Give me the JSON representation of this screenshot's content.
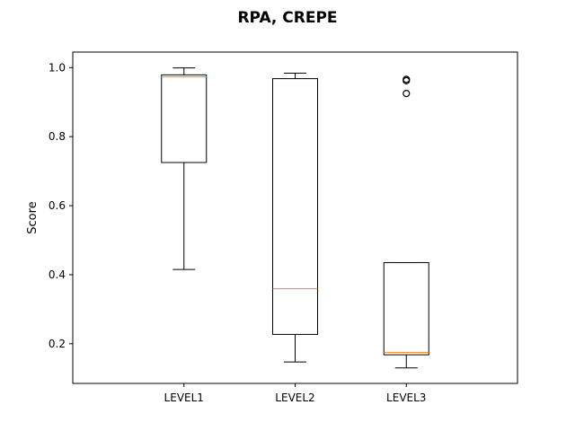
{
  "chart_data": {
    "type": "box",
    "title": "RPA, CREPE",
    "xlabel": "",
    "ylabel": "Score",
    "ylim": [
      0.085,
      1.045
    ],
    "yticks": [
      0.2,
      0.4,
      0.6,
      0.8,
      1.0
    ],
    "ytick_labels": [
      "0.2",
      "0.4",
      "0.6",
      "0.8",
      "1.0"
    ],
    "categories": [
      "LEVEL1",
      "LEVEL2",
      "LEVEL3"
    ],
    "boxes": [
      {
        "category": "LEVEL1",
        "whisker_low": 0.415,
        "q1": 0.725,
        "median": 0.973,
        "q3": 0.979,
        "whisker_high": 0.999,
        "outliers": []
      },
      {
        "category": "LEVEL2",
        "whisker_low": 0.147,
        "q1": 0.227,
        "median": 0.359,
        "q3": 0.968,
        "whisker_high": 0.984,
        "outliers": []
      },
      {
        "category": "LEVEL3",
        "whisker_low": 0.13,
        "q1": 0.168,
        "median": 0.175,
        "q3": 0.435,
        "whisker_high": 0.435,
        "outliers": [
          0.925,
          0.962,
          0.966
        ]
      }
    ],
    "colors": {
      "box": "#000000",
      "median": "#ff7f0e"
    },
    "grid": false,
    "legend": "none"
  }
}
